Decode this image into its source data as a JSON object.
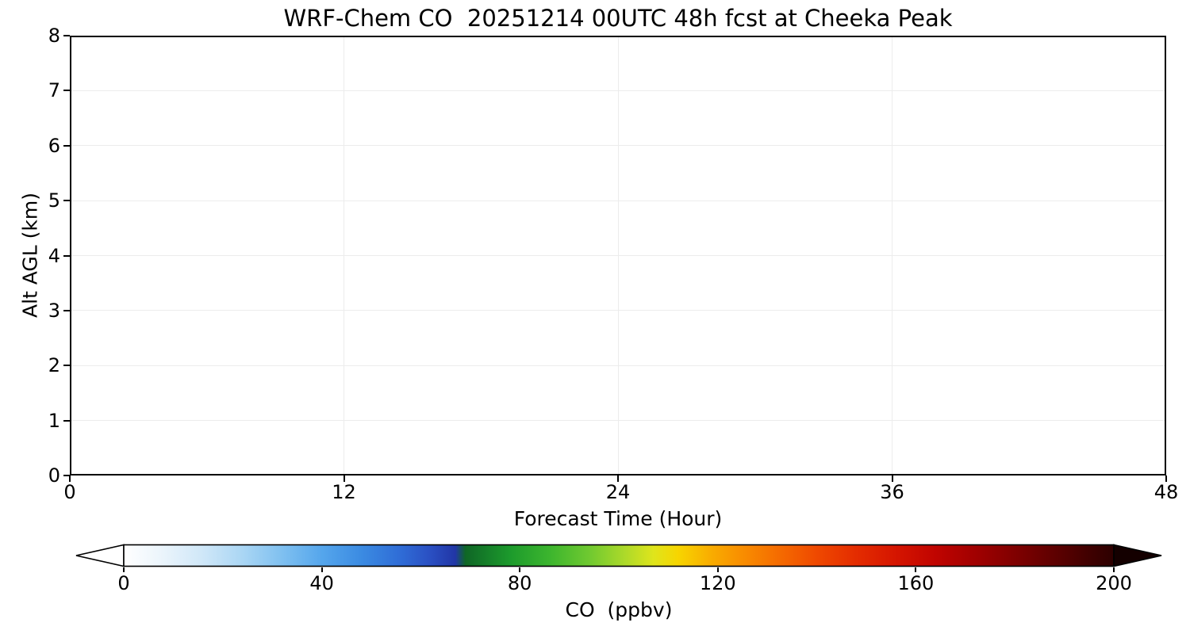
{
  "chart_data": {
    "type": "heatmap",
    "title": "WRF-Chem CO  20251214 00UTC 48h fcst at Cheeka Peak",
    "xlabel": "Forecast Time (Hour)",
    "ylabel": "Alt AGL (km)",
    "xlim": [
      0,
      48
    ],
    "ylim": [
      0,
      8
    ],
    "x_ticks": [
      0,
      12,
      24,
      36,
      48
    ],
    "y_ticks": [
      0,
      1,
      2,
      3,
      4,
      5,
      6,
      7,
      8
    ],
    "grid": true,
    "plot_area_content": "blank (uniform white, no CO field rendered)",
    "colorbar": {
      "label": "CO  (ppbv)",
      "orientation": "horizontal",
      "ticks": [
        0,
        40,
        80,
        120,
        160,
        200
      ],
      "vmin": 0,
      "vmax": 200,
      "extend": "both",
      "under_color": "#ffffff",
      "over_color": "#140000",
      "gradient_stops": [
        {
          "v": 0,
          "color": "#ffffff"
        },
        {
          "v": 8,
          "color": "#eaf4fb"
        },
        {
          "v": 16,
          "color": "#cfe7f8"
        },
        {
          "v": 24,
          "color": "#aad6f4"
        },
        {
          "v": 32,
          "color": "#7fc0f0"
        },
        {
          "v": 40,
          "color": "#55a6ec"
        },
        {
          "v": 48,
          "color": "#3b8be2"
        },
        {
          "v": 56,
          "color": "#2f6cd6"
        },
        {
          "v": 62,
          "color": "#2a4fc2"
        },
        {
          "v": 67,
          "color": "#2136a6"
        },
        {
          "v": 69,
          "color": "#0f6626"
        },
        {
          "v": 78,
          "color": "#1c9a2c"
        },
        {
          "v": 86,
          "color": "#3cb52e"
        },
        {
          "v": 94,
          "color": "#6fc930"
        },
        {
          "v": 101,
          "color": "#abd92a"
        },
        {
          "v": 107,
          "color": "#dfe51c"
        },
        {
          "v": 112,
          "color": "#f7d500"
        },
        {
          "v": 118,
          "color": "#f9b000"
        },
        {
          "v": 124,
          "color": "#f99200"
        },
        {
          "v": 132,
          "color": "#f56d00"
        },
        {
          "v": 140,
          "color": "#ef4900"
        },
        {
          "v": 148,
          "color": "#e42c00"
        },
        {
          "v": 156,
          "color": "#d51500"
        },
        {
          "v": 164,
          "color": "#c00400"
        },
        {
          "v": 172,
          "color": "#a10000"
        },
        {
          "v": 180,
          "color": "#800000"
        },
        {
          "v": 188,
          "color": "#5e0000"
        },
        {
          "v": 196,
          "color": "#3c0000"
        },
        {
          "v": 200,
          "color": "#2c0000"
        }
      ]
    }
  }
}
